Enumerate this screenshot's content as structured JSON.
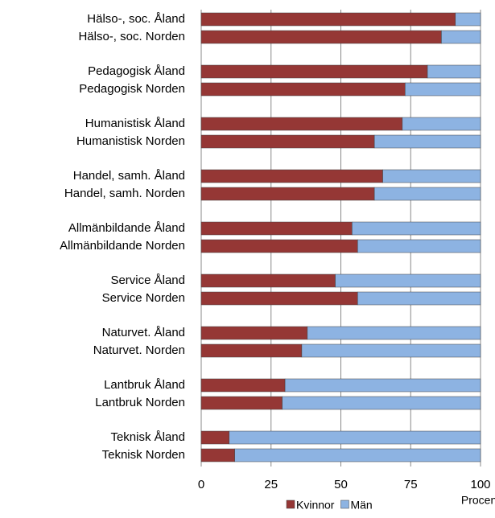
{
  "chart_data": {
    "type": "bar",
    "orientation": "horizontal",
    "stacked": true,
    "x_label": "Procent",
    "categories": [
      "Hälso-, soc. Åland",
      "Hälso-, soc. Norden",
      "Pedagogisk Åland",
      "Pedagogisk Norden",
      "Humanistisk Åland",
      "Humanistisk Norden",
      "Handel, samh. Åland",
      "Handel, samh. Norden",
      "Allmänbildande Åland",
      "Allmänbildande Norden",
      "Service Åland",
      "Service Norden",
      "Naturvet. Åland",
      "Naturvet. Norden",
      "Lantbruk Åland",
      "Lantbruk Norden",
      "Teknisk Åland",
      "Teknisk Norden"
    ],
    "series": [
      {
        "name": "Kvinnor",
        "color": "#953735",
        "values": [
          91,
          86,
          81,
          73,
          72,
          62,
          65,
          62,
          54,
          56,
          48,
          56,
          38,
          36,
          30,
          29,
          10,
          12
        ]
      },
      {
        "name": "Män",
        "color": "#8db3e2",
        "values": [
          9,
          14,
          19,
          27,
          28,
          38,
          35,
          38,
          46,
          44,
          52,
          44,
          62,
          64,
          70,
          71,
          90,
          88
        ]
      }
    ],
    "xlim": [
      0,
      100
    ],
    "xticks": [
      0,
      25,
      50,
      75,
      100
    ],
    "grid": true
  }
}
